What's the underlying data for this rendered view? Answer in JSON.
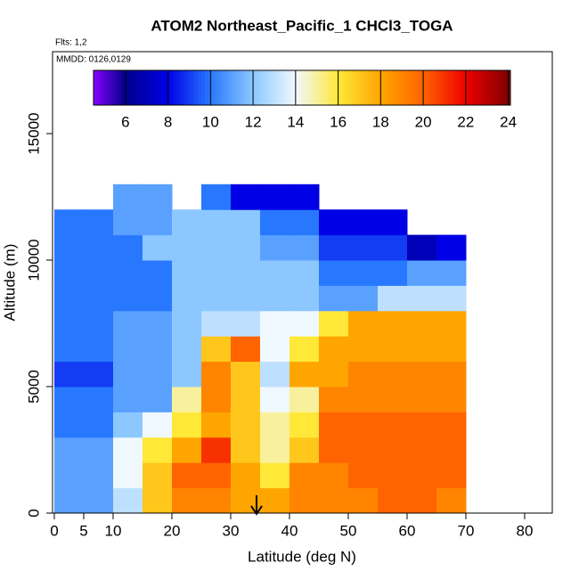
{
  "chart_data": {
    "type": "heatmap",
    "title": "ATOM2 Northeast_Pacific_1 CHCl3_TOGA",
    "subtitle": "Flts: 1,2",
    "annotation": "MMDD: 0126,0129",
    "xlabel": "Latitude (deg N)",
    "ylabel": "Altitude (m)",
    "xlim": [
      -0.3,
      84.7
    ],
    "ylim": [
      0,
      18240
    ],
    "xticks": [
      0,
      5,
      10,
      20,
      30,
      40,
      50,
      60,
      70,
      80
    ],
    "yticks": [
      0,
      5000,
      10000,
      15000
    ],
    "x_bins": [
      0,
      5,
      10,
      15,
      20,
      25,
      30,
      35,
      40,
      45,
      50,
      55,
      60,
      65,
      70
    ],
    "y_bins": [
      0,
      1000,
      2000,
      3000,
      4000,
      5000,
      6000,
      7000,
      8000,
      9000,
      10000,
      11000,
      12000,
      13000
    ],
    "z": [
      [
        11,
        11,
        13,
        17,
        19,
        19,
        18,
        18,
        19,
        19,
        19,
        20,
        20,
        19
      ],
      [
        11,
        11,
        14,
        17,
        20,
        20,
        18,
        16,
        19,
        19,
        20,
        20,
        20,
        20
      ],
      [
        11,
        11,
        14,
        16,
        18,
        21,
        17,
        15,
        17,
        20,
        20,
        20,
        20,
        20
      ],
      [
        10,
        10,
        12,
        14,
        16,
        18,
        17,
        15,
        16,
        20,
        20,
        20,
        20,
        20
      ],
      [
        10,
        10,
        11,
        11,
        15,
        19,
        17,
        14,
        15,
        19,
        19,
        19,
        19,
        19
      ],
      [
        9,
        9,
        11,
        11,
        12,
        19,
        17,
        13,
        18,
        18,
        19,
        19,
        19,
        19
      ],
      [
        10,
        10,
        11,
        11,
        12,
        17,
        20,
        14,
        16,
        18,
        18,
        18,
        18,
        18
      ],
      [
        10,
        10,
        11,
        11,
        12,
        13,
        13,
        14,
        14,
        16,
        18,
        18,
        18,
        18
      ],
      [
        10,
        10,
        10,
        10,
        12,
        12,
        12,
        12,
        12,
        11,
        11,
        13,
        13,
        13
      ],
      [
        10,
        10,
        10,
        10,
        12,
        12,
        12,
        12,
        12,
        10,
        10,
        10,
        11,
        11
      ],
      [
        10,
        10,
        10,
        12,
        12,
        12,
        12,
        11,
        11,
        9,
        9,
        9,
        7,
        8
      ],
      [
        10,
        10,
        11,
        11,
        12,
        12,
        12,
        10,
        10,
        8,
        8,
        8,
        null,
        null
      ],
      [
        null,
        null,
        11,
        11,
        null,
        10,
        8,
        8,
        8,
        null,
        null,
        null,
        null,
        null
      ]
    ],
    "colorbar_lim": [
      4.5,
      24.1
    ],
    "colorbar_ticks": [
      6,
      8,
      10,
      12,
      14,
      16,
      18,
      20,
      22,
      24
    ],
    "colorscale": [
      [
        4.5,
        "#8a00ff"
      ],
      [
        6,
        "#00008b"
      ],
      [
        8,
        "#0000e6"
      ],
      [
        10,
        "#2878ff"
      ],
      [
        12,
        "#8cc8ff"
      ],
      [
        14,
        "#f0f8ff"
      ],
      [
        16,
        "#ffe838"
      ],
      [
        18,
        "#ffa500"
      ],
      [
        20,
        "#ff6400"
      ],
      [
        22,
        "#ee0000"
      ],
      [
        24.1,
        "#7a0000"
      ]
    ]
  }
}
